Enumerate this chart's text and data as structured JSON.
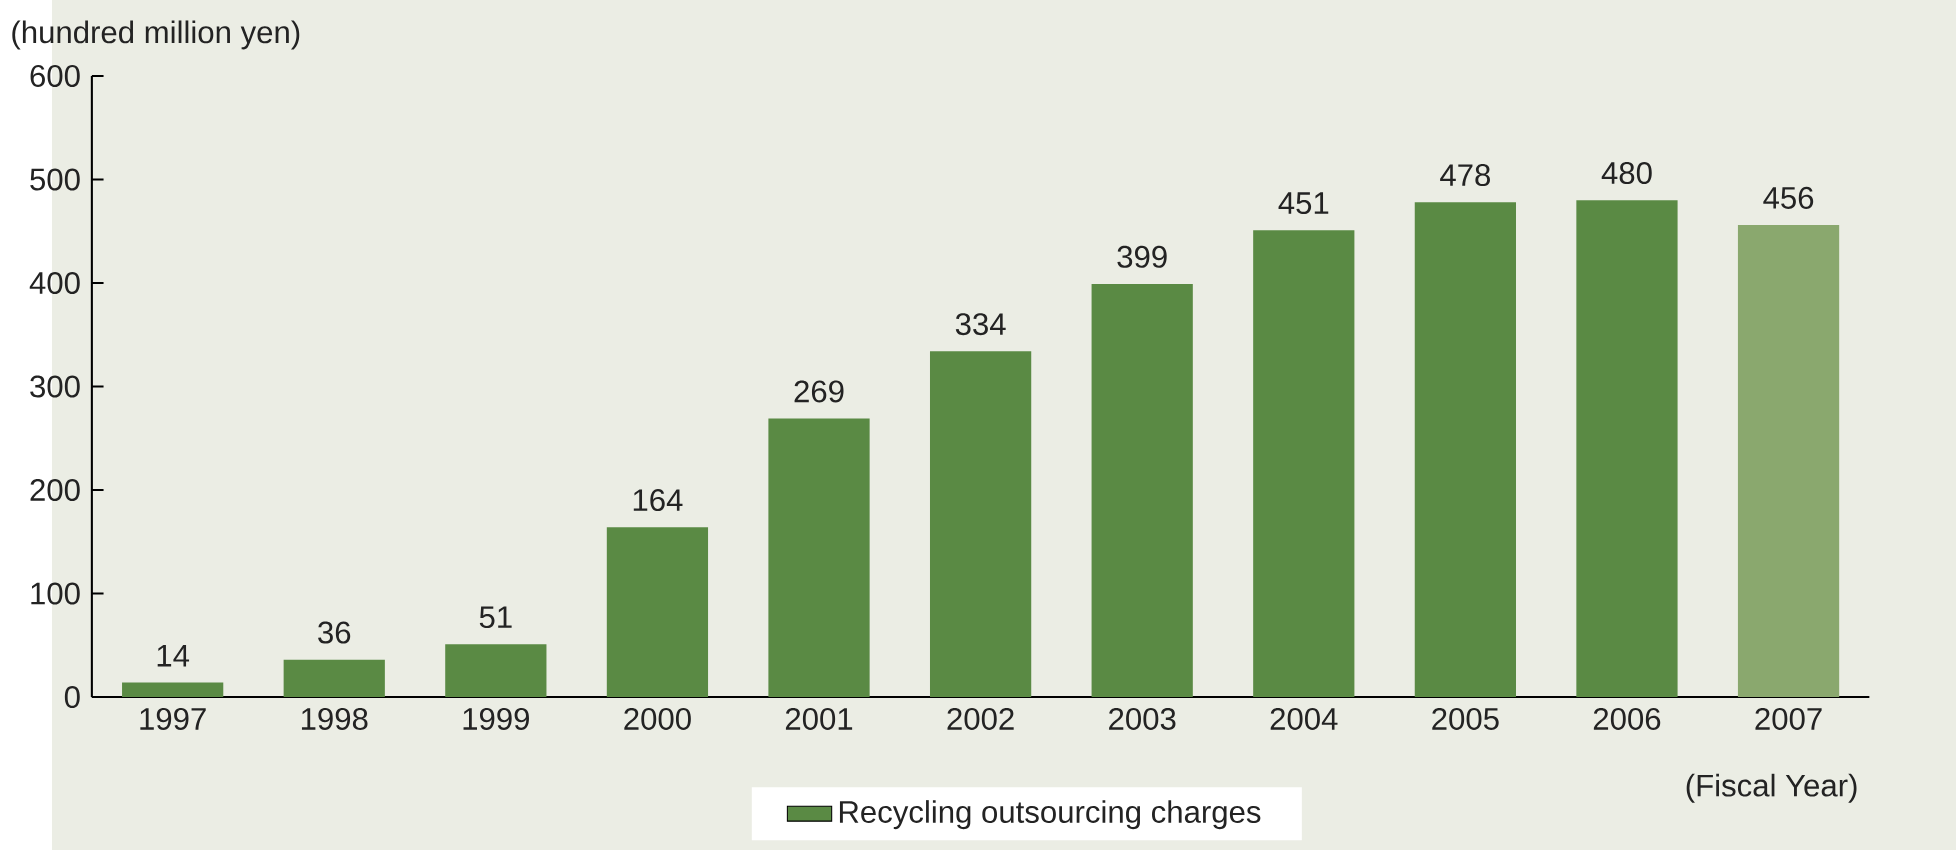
{
  "chart_data": {
    "type": "bar",
    "ylabel": "(hundred million yen)",
    "xlabel": "(Fiscal Year)",
    "categories": [
      "1997",
      "1998",
      "1999",
      "2000",
      "2001",
      "2002",
      "2003",
      "2004",
      "2005",
      "2006",
      "2007"
    ],
    "series": [
      {
        "name": "Recycling outsourcing charges",
        "color": "#5a8a44",
        "colors": [
          "#5a8a44",
          "#5a8a44",
          "#5a8a44",
          "#5a8a44",
          "#5a8a44",
          "#5a8a44",
          "#5a8a44",
          "#5a8a44",
          "#5a8a44",
          "#5a8a44",
          "#8aa86e"
        ],
        "values": [
          14,
          36,
          51,
          164,
          269,
          334,
          399,
          451,
          478,
          480,
          456
        ]
      }
    ],
    "ylim": [
      0,
      600
    ],
    "yticks": [
      0,
      100,
      200,
      300,
      400,
      500,
      600
    ],
    "data_labels": true,
    "legend": "bottom"
  }
}
